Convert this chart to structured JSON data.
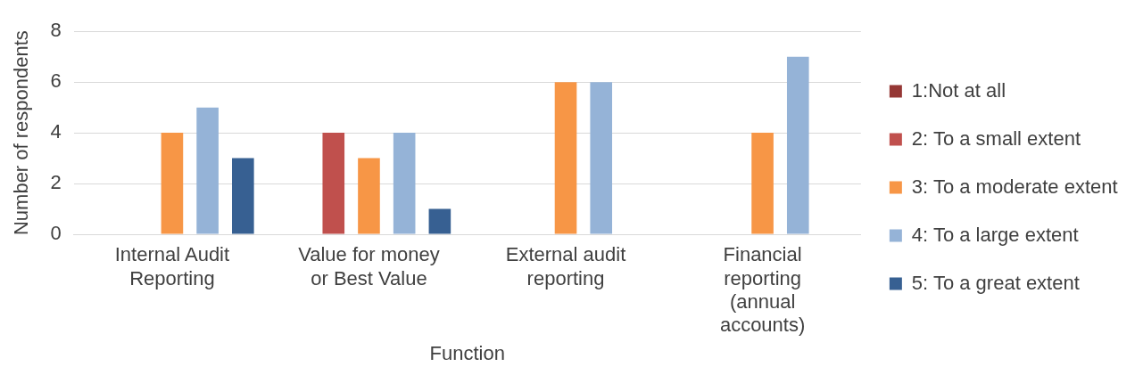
{
  "chart_data": {
    "type": "bar",
    "xlabel": "Function",
    "ylabel": "Number of respondents",
    "categories": [
      "Internal Audit Reporting",
      "Value for money or Best Value",
      "External audit reporting",
      "Financial reporting (annual accounts)"
    ],
    "series": [
      {
        "name": "1:Not at all",
        "color": "#953735",
        "values": [
          0,
          0,
          0,
          0
        ]
      },
      {
        "name": "2: To a small extent",
        "color": "#c0504d",
        "values": [
          0,
          4,
          0,
          0
        ]
      },
      {
        "name": "3: To a moderate extent",
        "color": "#f79646",
        "values": [
          4,
          3,
          6,
          4
        ]
      },
      {
        "name": "4: To a large extent",
        "color": "#95b3d7",
        "values": [
          5,
          4,
          6,
          7
        ]
      },
      {
        "name": "5: To a great extent",
        "color": "#376092",
        "values": [
          3,
          1,
          0,
          0
        ]
      }
    ],
    "ylim": [
      0,
      8
    ],
    "yticks": [
      0,
      2,
      4,
      6,
      8
    ],
    "grid": "y",
    "legend": "right"
  }
}
